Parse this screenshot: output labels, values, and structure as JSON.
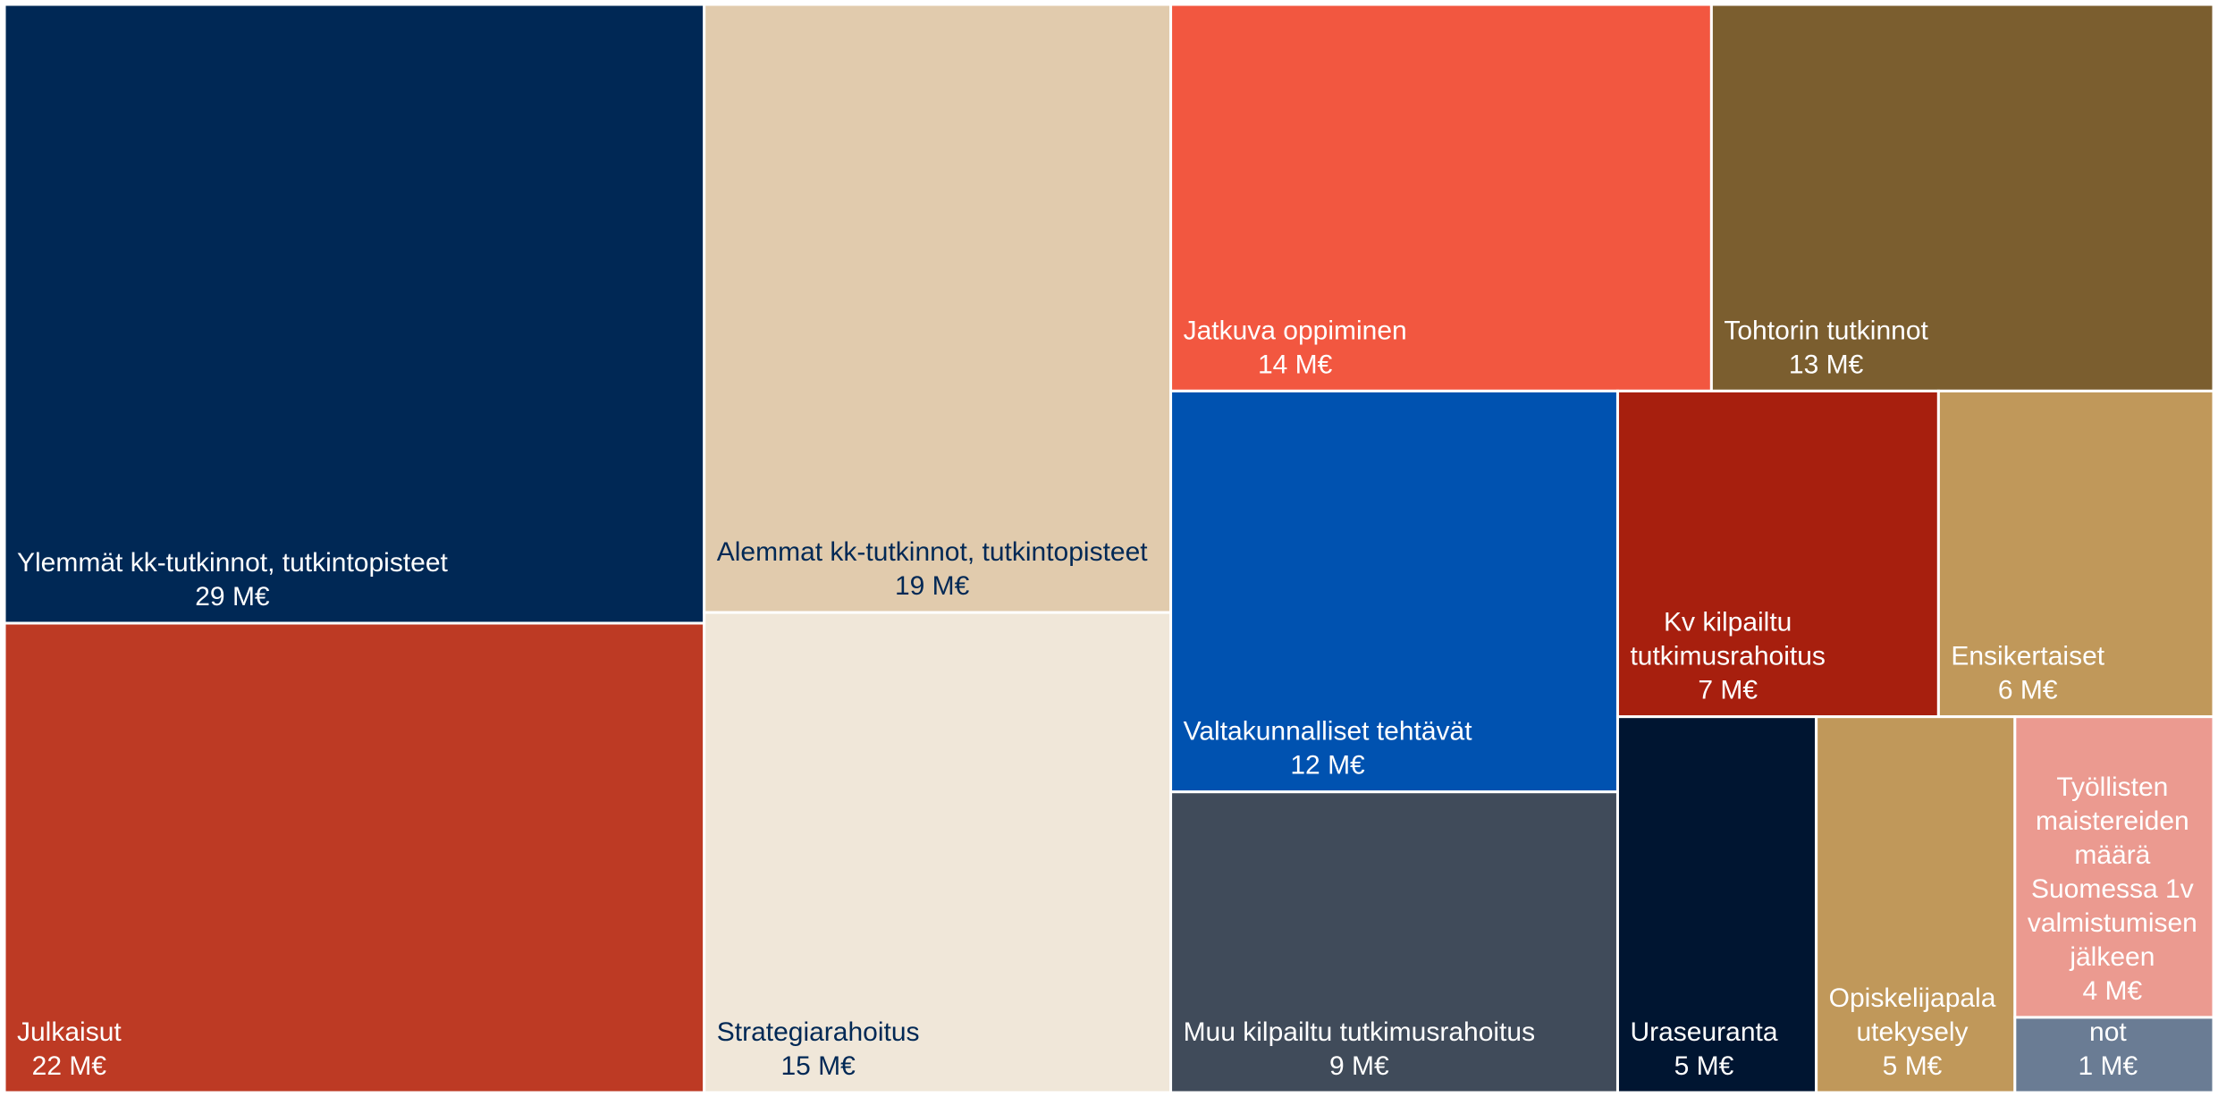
{
  "chart_data": {
    "type": "treemap",
    "categories": [
      "Ylemmät kk-tutkinnot, tutkintopisteet",
      "Julkaisut",
      "Alemmat kk-tutkinnot, tutkintopisteet",
      "Strategiarahoitus",
      "Jatkuva oppiminen",
      "Tohtorin tutkinnot",
      "Valtakunnalliset tehtävät",
      "Muu kilpailtu tutkimusrahoitus",
      "Kv kilpailtu tutkimusrahoitus",
      "Ensikertaiset",
      "Uraseuranta",
      "Opiskelijapalautekysely",
      "Työllisten maistereiden määrä Suomessa 1v valmistumisen jälkeen",
      "Yhteistyöopinnot"
    ],
    "values": [
      29,
      22,
      19,
      15,
      14,
      13,
      12,
      9,
      7,
      6,
      5,
      5,
      4,
      1
    ],
    "value_labels": [
      "29 M€",
      "22 M€",
      "19 M€",
      "15 M€",
      "14 M€",
      "13 M€",
      "12 M€",
      "9 M€",
      "7 M€",
      "6 M€",
      "5 M€",
      "5 M€",
      "4 M€",
      "1 M€"
    ],
    "colors": [
      "#002855",
      "#bd3a24",
      "#e1cbad",
      "#f0e7d9",
      "#f25740",
      "#7b5e2f",
      "#0052b0",
      "#404b5a",
      "#a71f0e",
      "#c0985a",
      "#001531",
      "#c0985a",
      "#eb9a90",
      "#6a7c94"
    ],
    "label_colors": [
      "#ffffff",
      "#ffffff",
      "#002855",
      "#002855",
      "#ffffff",
      "#ffffff",
      "#ffffff",
      "#ffffff",
      "#ffffff",
      "#ffffff",
      "#ffffff",
      "#ffffff",
      "#ffffff",
      "#ffffff"
    ]
  }
}
